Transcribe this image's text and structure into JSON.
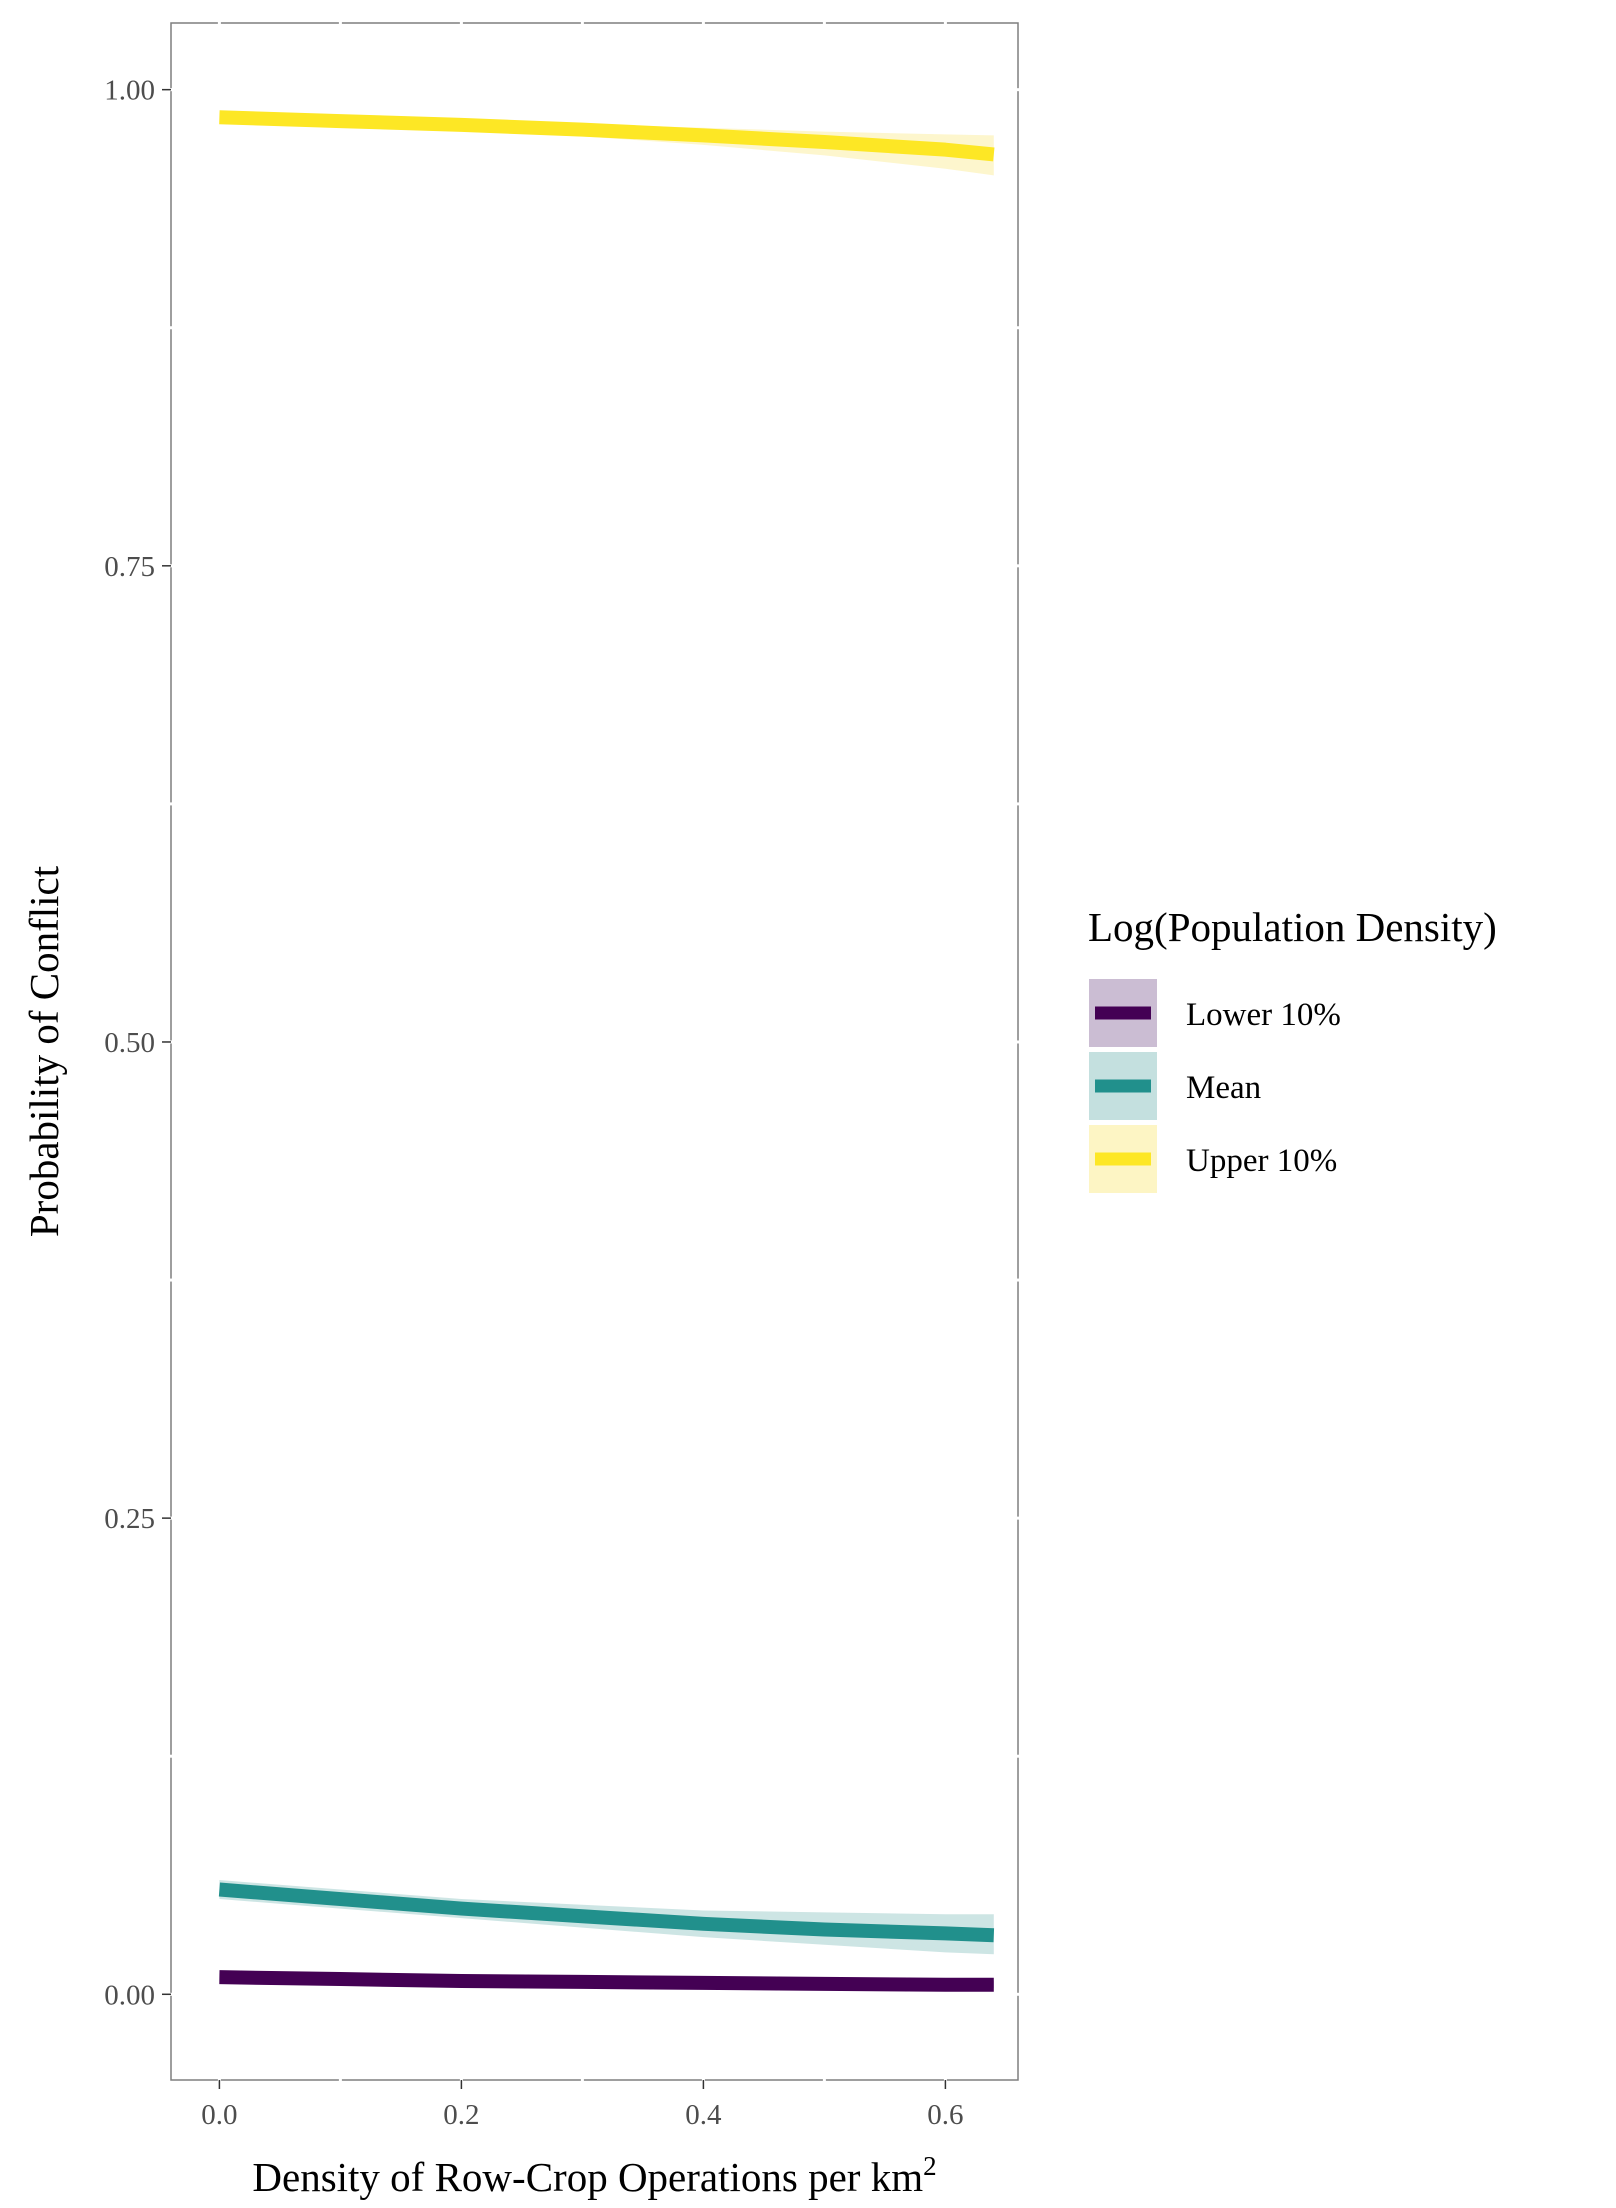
{
  "chart_data": {
    "type": "line",
    "xlabel": "Density of Row-Crop Operations per km",
    "xlabel_superscript": "2",
    "ylabel": "Probability of Conflict",
    "xlim": [
      -0.04,
      0.66
    ],
    "ylim": [
      -0.045,
      1.035
    ],
    "x_ticks": [
      0.0,
      0.2,
      0.4,
      0.6
    ],
    "x_tick_labels": [
      "0.0",
      "0.2",
      "0.4",
      "0.6"
    ],
    "y_ticks": [
      0.0,
      0.25,
      0.5,
      0.75,
      1.0
    ],
    "y_tick_labels": [
      "0.00",
      "0.25",
      "0.50",
      "0.75",
      "1.00"
    ],
    "grid": false,
    "legend": {
      "title": "Log(Population Density)",
      "position": "right"
    },
    "x": [
      0.0,
      0.1,
      0.2,
      0.3,
      0.4,
      0.5,
      0.6,
      0.64
    ],
    "series": [
      {
        "name": "Lower 10%",
        "color": "#440154",
        "fill": "#cbbdd3",
        "y": [
          0.009,
          0.008,
          0.007,
          0.0065,
          0.006,
          0.0055,
          0.005,
          0.005
        ],
        "lower": [
          0.007,
          0.0065,
          0.006,
          0.0052,
          0.0046,
          0.004,
          0.0035,
          0.0033
        ],
        "upper": [
          0.011,
          0.0098,
          0.0088,
          0.0083,
          0.0078,
          0.0074,
          0.0072,
          0.0071
        ]
      },
      {
        "name": "Mean",
        "color": "#21908c",
        "fill": "#c4e0df",
        "y": [
          0.055,
          0.05,
          0.045,
          0.041,
          0.037,
          0.034,
          0.032,
          0.031
        ],
        "lower": [
          0.05,
          0.045,
          0.04,
          0.035,
          0.03,
          0.026,
          0.022,
          0.021
        ],
        "upper": [
          0.06,
          0.055,
          0.05,
          0.047,
          0.044,
          0.043,
          0.042,
          0.042
        ]
      },
      {
        "name": "Upper 10%",
        "color": "#fde725",
        "fill": "#fdf5c4",
        "y": [
          0.9855,
          0.9835,
          0.9815,
          0.979,
          0.976,
          0.9725,
          0.9685,
          0.966
        ],
        "lower": [
          0.983,
          0.981,
          0.979,
          0.9755,
          0.971,
          0.9655,
          0.9585,
          0.955
        ],
        "upper": [
          0.988,
          0.986,
          0.984,
          0.982,
          0.98,
          0.978,
          0.9765,
          0.976
        ]
      }
    ]
  }
}
